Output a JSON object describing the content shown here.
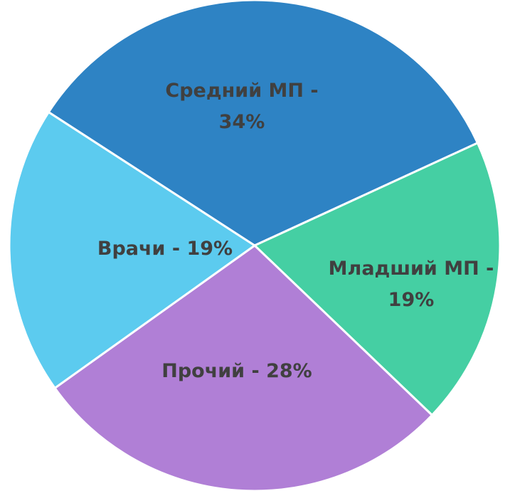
{
  "chart_data": {
    "type": "pie",
    "categories": [
      "Средний МП - 34%",
      "Младший МП - 19%",
      "Прочий - 28%",
      "Врачи - 19%"
    ],
    "values": [
      34,
      19,
      28,
      19
    ],
    "colors": [
      "#2e83c4",
      "#45cfa3",
      "#b07fd6",
      "#5ccbef"
    ]
  }
}
